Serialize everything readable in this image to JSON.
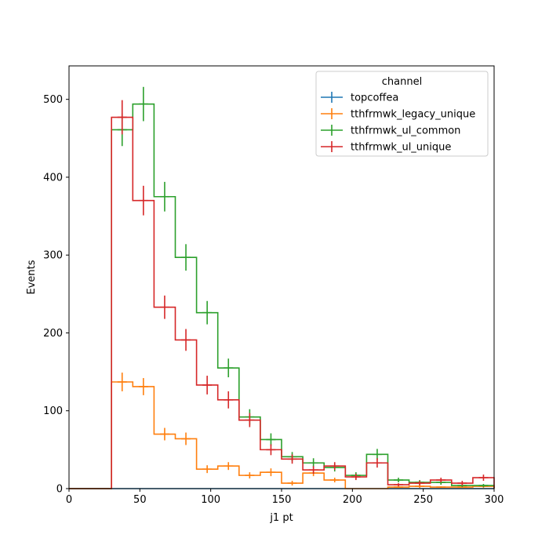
{
  "chart_data": {
    "type": "line",
    "drawstyle": "step-histogram-with-errorbars",
    "title": "",
    "xlabel": "j1 pt",
    "ylabel": "Events",
    "xlim": [
      0,
      300
    ],
    "ylim": [
      0,
      543
    ],
    "xticks": [
      0,
      50,
      100,
      150,
      200,
      250,
      300
    ],
    "yticks": [
      0,
      100,
      200,
      300,
      400,
      500
    ],
    "grid": false,
    "legend": {
      "title": "channel",
      "placement": "top-right"
    },
    "bin_edges": [
      0,
      15,
      30,
      45,
      60,
      75,
      90,
      105,
      120,
      135,
      150,
      165,
      180,
      195,
      210,
      225,
      240,
      255,
      270,
      285,
      300
    ],
    "series": [
      {
        "name": "topcoffea",
        "color": "#1f77b4",
        "values": [
          0,
          0,
          0,
          0,
          0,
          0,
          0,
          0,
          0,
          0,
          0,
          0,
          0,
          0,
          0,
          0,
          0,
          0,
          0,
          0
        ],
        "errors": [
          0,
          0,
          0,
          0,
          0,
          0,
          0,
          0,
          0,
          0,
          0,
          0,
          0,
          0,
          0,
          0,
          0,
          0,
          0,
          0
        ]
      },
      {
        "name": "tthfrmwk_legacy_unique",
        "color": "#ff7f0e",
        "values": [
          0,
          0,
          137,
          131,
          70,
          64,
          25,
          29,
          17,
          21,
          7,
          20,
          11,
          0,
          0,
          2,
          3,
          2,
          2,
          3
        ],
        "errors": [
          0,
          0,
          12,
          11,
          8,
          8,
          5,
          5,
          4,
          5,
          3,
          4,
          3,
          0,
          0,
          1,
          2,
          1,
          1,
          2
        ]
      },
      {
        "name": "tthfrmwk_ul_common",
        "color": "#2ca02c",
        "values": [
          0,
          0,
          461,
          494,
          375,
          297,
          226,
          155,
          92,
          63,
          41,
          33,
          27,
          17,
          44,
          11,
          8,
          8,
          4,
          4
        ],
        "errors": [
          0,
          0,
          21,
          22,
          19,
          17,
          15,
          12,
          10,
          8,
          6,
          6,
          5,
          4,
          7,
          3,
          3,
          3,
          2,
          2
        ]
      },
      {
        "name": "tthfrmwk_ul_unique",
        "color": "#d62728",
        "values": [
          0,
          0,
          477,
          370,
          233,
          191,
          133,
          114,
          88,
          50,
          38,
          24,
          29,
          15,
          33,
          5,
          7,
          11,
          7,
          14
        ],
        "errors": [
          0,
          0,
          22,
          19,
          15,
          14,
          12,
          11,
          9,
          7,
          6,
          5,
          5,
          4,
          6,
          2,
          3,
          3,
          3,
          4
        ]
      }
    ]
  }
}
